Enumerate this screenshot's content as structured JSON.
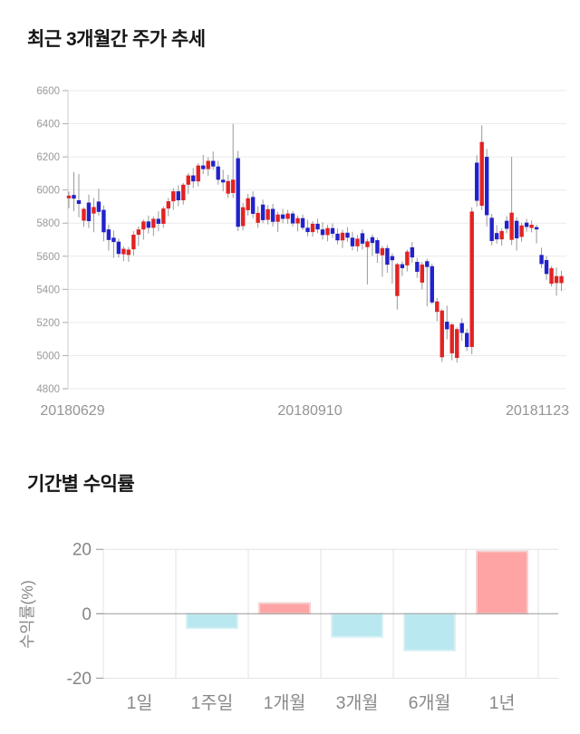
{
  "page": {
    "background": "#ffffff"
  },
  "chart_data": [
    {
      "type": "candlestick",
      "title": "최근 3개월간 주가 추세",
      "x_labels": [
        "20180629",
        "20180910",
        "20181123"
      ],
      "y_ticks": [
        6600,
        6400,
        6200,
        6000,
        5800,
        5600,
        5400,
        5200,
        5000,
        4800
      ],
      "ylim": [
        4800,
        6600
      ],
      "grid": true,
      "up_color": "#e32222",
      "down_color": "#2222cc",
      "wick_color": "#999999",
      "axis_color": "#cccccc",
      "grid_color": "#eaeaea",
      "tick_label_color": "#999999",
      "date_label_color": "#949494",
      "candles_ohlc": [
        [
          5950,
          5990,
          5890,
          5966
        ],
        [
          5970,
          6108,
          5872,
          5948
        ],
        [
          5938,
          6096,
          5835,
          5916
        ],
        [
          5815,
          5895,
          5778,
          5886
        ],
        [
          5924,
          5972,
          5770,
          5812
        ],
        [
          5858,
          5952,
          5745,
          5897
        ],
        [
          5930,
          6008,
          5845,
          5868
        ],
        [
          5880,
          5906,
          5690,
          5745
        ],
        [
          5762,
          5792,
          5634,
          5698
        ],
        [
          5712,
          5755,
          5590,
          5686
        ],
        [
          5688,
          5706,
          5592,
          5614
        ],
        [
          5612,
          5660,
          5570,
          5645
        ],
        [
          5608,
          5656,
          5566,
          5640
        ],
        [
          5642,
          5752,
          5604,
          5730
        ],
        [
          5730,
          5780,
          5662,
          5762
        ],
        [
          5762,
          5822,
          5700,
          5810
        ],
        [
          5810,
          5846,
          5738,
          5772
        ],
        [
          5772,
          5838,
          5722,
          5826
        ],
        [
          5826,
          5872,
          5752,
          5796
        ],
        [
          5796,
          5902,
          5772,
          5888
        ],
        [
          5888,
          5952,
          5842,
          5932
        ],
        [
          5932,
          6012,
          5880,
          5992
        ],
        [
          5992,
          6028,
          5902,
          5938
        ],
        [
          5938,
          6042,
          5912,
          6032
        ],
        [
          6032,
          6102,
          5976,
          6088
        ],
        [
          6088,
          6132,
          6012,
          6052
        ],
        [
          6052,
          6162,
          6022,
          6148
        ],
        [
          6148,
          6212,
          6096,
          6126
        ],
        [
          6126,
          6198,
          6086,
          6176
        ],
        [
          6176,
          6232,
          6122,
          6142
        ],
        [
          6142,
          6176,
          6032,
          6062
        ],
        [
          6062,
          6122,
          5992,
          6046
        ],
        [
          5978,
          6092,
          5952,
          6054
        ],
        [
          5982,
          6400,
          5952,
          6062
        ],
        [
          6192,
          6236,
          5752,
          5778
        ],
        [
          5782,
          5922,
          5756,
          5896
        ],
        [
          5878,
          5976,
          5846,
          5950
        ],
        [
          5958,
          5992,
          5830,
          5856
        ],
        [
          5802,
          5902,
          5772,
          5862
        ],
        [
          5912,
          5942,
          5800,
          5818
        ],
        [
          5820,
          5908,
          5792,
          5884
        ],
        [
          5886,
          5916,
          5780,
          5808
        ],
        [
          5808,
          5868,
          5746,
          5852
        ],
        [
          5852,
          5886,
          5800,
          5826
        ],
        [
          5826,
          5880,
          5796,
          5858
        ],
        [
          5858,
          5872,
          5780,
          5798
        ],
        [
          5798,
          5846,
          5750,
          5830
        ],
        [
          5830,
          5852,
          5758,
          5772
        ],
        [
          5772,
          5820,
          5720,
          5746
        ],
        [
          5746,
          5812,
          5718,
          5796
        ],
        [
          5796,
          5826,
          5740,
          5762
        ],
        [
          5762,
          5806,
          5700,
          5728
        ],
        [
          5728,
          5790,
          5690,
          5770
        ],
        [
          5770,
          5798,
          5710,
          5736
        ],
        [
          5736,
          5768,
          5672,
          5696
        ],
        [
          5696,
          5760,
          5650,
          5742
        ],
        [
          5742,
          5776,
          5688,
          5712
        ],
        [
          5712,
          5748,
          5636,
          5660
        ],
        [
          5660,
          5728,
          5628,
          5706
        ],
        [
          5739,
          5762,
          5640,
          5676
        ],
        [
          5655,
          5706,
          5430,
          5690
        ],
        [
          5715,
          5732,
          5602,
          5680
        ],
        [
          5697,
          5712,
          5560,
          5617
        ],
        [
          5606,
          5662,
          5476,
          5649
        ],
        [
          5649,
          5668,
          5500,
          5549
        ],
        [
          5601,
          5618,
          5435,
          5576
        ],
        [
          5360,
          5560,
          5278,
          5552
        ],
        [
          5552,
          5570,
          5480,
          5528
        ],
        [
          5545,
          5640,
          5508,
          5628
        ],
        [
          5654,
          5686,
          5560,
          5593
        ],
        [
          5566,
          5590,
          5470,
          5506
        ],
        [
          5441,
          5565,
          5400,
          5550
        ],
        [
          5570,
          5585,
          5297,
          5535
        ],
        [
          5540,
          5556,
          5310,
          5321
        ],
        [
          5264,
          5348,
          5208,
          5327
        ],
        [
          4990,
          5280,
          4962,
          5272
        ],
        [
          5205,
          5302,
          5098,
          5159
        ],
        [
          5014,
          5196,
          4972,
          5188
        ],
        [
          4986,
          5170,
          4958,
          5160
        ],
        [
          5196,
          5225,
          5090,
          5137
        ],
        [
          5137,
          5162,
          5028,
          5052
        ],
        [
          5052,
          5895,
          5008,
          5870
        ],
        [
          6165,
          6210,
          5900,
          5935
        ],
        [
          5905,
          6390,
          5880,
          6290
        ],
        [
          6200,
          6248,
          5780,
          5848
        ],
        [
          5832,
          5856,
          5666,
          5692
        ],
        [
          5740,
          5788,
          5676,
          5702
        ],
        [
          5702,
          5768,
          5664,
          5752
        ],
        [
          5814,
          5842,
          5738,
          5766
        ],
        [
          5699,
          6200,
          5668,
          5863
        ],
        [
          5814,
          5836,
          5634,
          5708
        ],
        [
          5717,
          5802,
          5688,
          5786
        ],
        [
          5803,
          5826,
          5748,
          5777
        ],
        [
          5771,
          5816,
          5744,
          5790
        ],
        [
          5776,
          5790,
          5678,
          5762
        ],
        [
          5608,
          5652,
          5528,
          5553
        ],
        [
          5577,
          5602,
          5458,
          5493
        ],
        [
          5434,
          5540,
          5418,
          5528
        ],
        [
          5438,
          5532,
          5362,
          5480
        ],
        [
          5438,
          5512,
          5390,
          5480
        ]
      ]
    },
    {
      "type": "bar",
      "title": "기간별 수익률",
      "categories": [
        "1일",
        "1주일",
        "1개월",
        "3개월",
        "6개월",
        "1년"
      ],
      "values": [
        0,
        -4.5,
        3.3,
        -7.2,
        -11.4,
        19.4
      ],
      "ylabel": "수익률(%)",
      "y_ticks": [
        20,
        0,
        -20
      ],
      "ylim": [
        -20,
        20
      ],
      "grid": true,
      "legend": "none",
      "pos_color": "#ffa4a4",
      "pos_edge_color": "#f3d2d2",
      "neg_color": "#b9e8f1",
      "neg_edge_color": "#d9f1f5",
      "zero_line_color": "#999999",
      "grid_color": "#e3e3e3",
      "tick_label_color": "#858585",
      "category_label_color": "#888888"
    }
  ]
}
